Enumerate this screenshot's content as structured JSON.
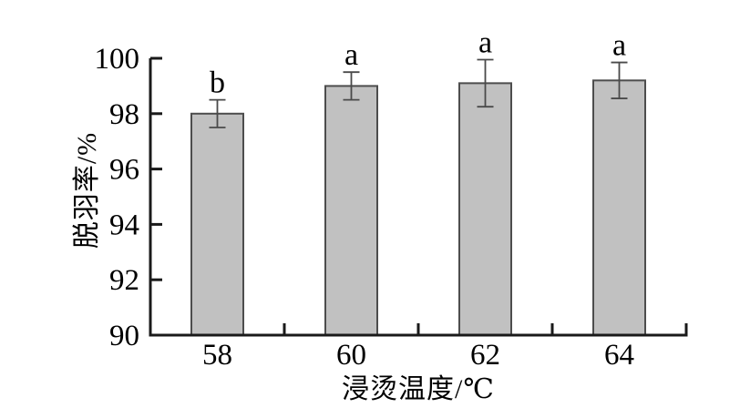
{
  "figure": {
    "background": "#ffffff"
  },
  "chart_data": {
    "type": "bar",
    "title": "",
    "xlabel": "浸烫温度/℃",
    "ylabel": "脱羽率/%",
    "categories": [
      "58",
      "60",
      "62",
      "64"
    ],
    "values": [
      98.0,
      99.0,
      99.1,
      99.2
    ],
    "errors": [
      0.5,
      0.5,
      0.85,
      0.65
    ],
    "sig_labels": [
      "b",
      "a",
      "a",
      "a"
    ],
    "ylim": [
      90,
      100
    ],
    "yticks": [
      90,
      92,
      94,
      96,
      98,
      100
    ],
    "grid": false,
    "legend": "none",
    "bar_fill": "#c1c1c1",
    "bar_stroke": "#4d4d4d",
    "error_color": "#4a4a4a",
    "axis_color": "#1a1a1a",
    "text_color": "#000000"
  }
}
